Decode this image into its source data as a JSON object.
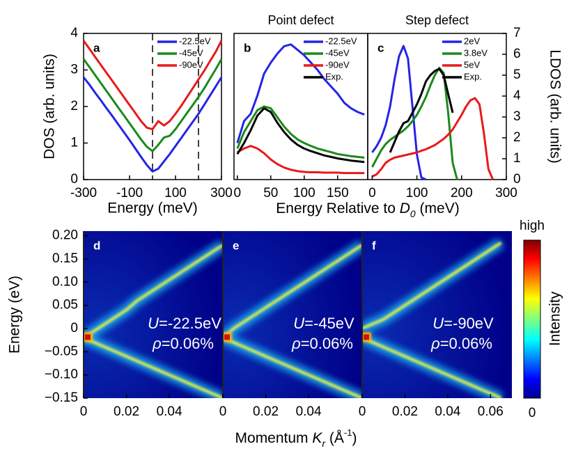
{
  "chart_data": [
    {
      "type": "line",
      "panel_label": "a",
      "xlabel": "Energy (meV)",
      "ylabel": "DOS (arb. units)",
      "xlim": [
        -300,
        300
      ],
      "xticks": [
        -300,
        -100,
        100,
        300
      ],
      "ylim": [
        0,
        4
      ],
      "yticks": [
        0,
        1,
        2,
        3,
        4
      ],
      "vlines": [
        0,
        200
      ],
      "legend": "upper right",
      "x": [
        -300,
        -275,
        -250,
        -225,
        -200,
        -175,
        -150,
        -125,
        -100,
        -75,
        -50,
        -25,
        0,
        25,
        50,
        75,
        100,
        125,
        150,
        175,
        200,
        225,
        250,
        275,
        300
      ],
      "series": [
        {
          "name": "-22.5eV",
          "color": "#2424e6",
          "values": [
            2.8,
            2.6,
            2.38,
            2.17,
            1.95,
            1.74,
            1.52,
            1.3,
            1.08,
            0.85,
            0.62,
            0.4,
            0.22,
            0.3,
            0.5,
            0.7,
            0.92,
            1.14,
            1.36,
            1.58,
            1.8,
            2.05,
            2.3,
            2.55,
            2.8
          ]
        },
        {
          "name": "-45eV",
          "color": "#1a8a1a",
          "values": [
            3.3,
            3.08,
            2.86,
            2.64,
            2.42,
            2.2,
            1.98,
            1.76,
            1.54,
            1.32,
            1.1,
            0.9,
            0.78,
            0.95,
            1.15,
            1.2,
            1.38,
            1.6,
            1.82,
            2.04,
            2.26,
            2.5,
            2.76,
            3.02,
            3.3
          ]
        },
        {
          "name": "-90eV",
          "color": "#e8191b",
          "values": [
            3.8,
            3.58,
            3.36,
            3.14,
            2.92,
            2.7,
            2.48,
            2.26,
            2.04,
            1.82,
            1.6,
            1.42,
            1.38,
            1.6,
            1.48,
            1.6,
            1.8,
            2.02,
            2.26,
            2.5,
            2.74,
            2.98,
            3.24,
            3.5,
            3.8
          ]
        }
      ]
    },
    {
      "type": "line",
      "panel_label": "b",
      "title": "Point defect",
      "xlabel": {
        "text": "Energy Relative to ",
        "symbol": "D",
        "sub": "0",
        "unit": " (meV)"
      },
      "xlim": [
        -5,
        195
      ],
      "xticks": [
        0,
        50,
        100,
        150
      ],
      "ylim": [
        0,
        4
      ],
      "legend": "upper right",
      "x": [
        0,
        10,
        20,
        30,
        40,
        50,
        60,
        70,
        80,
        90,
        100,
        110,
        120,
        130,
        140,
        150,
        160,
        170,
        180,
        190
      ],
      "series": [
        {
          "name": "-22.5eV",
          "color": "#2424e6",
          "values": [
            1.0,
            1.6,
            1.8,
            2.3,
            2.9,
            3.2,
            3.45,
            3.65,
            3.7,
            3.55,
            3.4,
            3.2,
            3.0,
            2.75,
            2.55,
            2.35,
            2.1,
            1.95,
            1.85,
            1.78
          ]
        },
        {
          "name": "-45eV",
          "color": "#1a8a1a",
          "values": [
            0.85,
            1.3,
            1.6,
            1.9,
            2.0,
            1.95,
            1.7,
            1.45,
            1.25,
            1.1,
            1.0,
            0.92,
            0.85,
            0.8,
            0.75,
            0.7,
            0.67,
            0.64,
            0.62,
            0.6
          ]
        },
        {
          "name": "-90eV",
          "color": "#e8191b",
          "values": [
            0.75,
            0.85,
            0.92,
            0.85,
            0.72,
            0.55,
            0.42,
            0.33,
            0.27,
            0.23,
            0.21,
            0.2,
            0.2,
            0.19,
            0.19,
            0.19,
            0.18,
            0.18,
            0.18,
            0.18
          ]
        },
        {
          "name": "Exp.",
          "color": "#000000",
          "values": [
            0.7,
            1.0,
            1.35,
            1.75,
            1.95,
            1.85,
            1.55,
            1.3,
            1.1,
            0.95,
            0.85,
            0.78,
            0.72,
            0.66,
            0.62,
            0.58,
            0.55,
            0.52,
            0.5,
            0.48
          ]
        }
      ]
    },
    {
      "type": "line",
      "panel_label": "c",
      "title": "Step defect",
      "y2label": "LDOS (arb. units)",
      "xlim": [
        -10,
        300
      ],
      "xticks": [
        0,
        100,
        200,
        300
      ],
      "y2lim": [
        0,
        7
      ],
      "y2ticks": [
        0,
        1,
        2,
        3,
        4,
        5,
        6,
        7
      ],
      "legend": "upper right",
      "x": [
        0,
        10,
        20,
        30,
        40,
        50,
        60,
        70,
        80,
        90,
        100,
        110,
        120,
        130,
        140,
        150,
        160,
        170,
        180,
        190,
        200,
        210,
        220,
        230,
        240,
        250,
        260,
        270,
        280
      ],
      "series": [
        {
          "name": "2eV",
          "color": "#2424e6",
          "axis": "y2",
          "values": [
            1.3,
            1.6,
            2.0,
            2.6,
            3.5,
            4.8,
            5.9,
            6.4,
            5.8,
            3.5,
            1.2,
            0.1,
            0,
            null,
            null,
            null,
            null,
            null,
            null,
            null,
            null,
            null,
            null,
            null,
            null,
            null,
            null,
            null,
            null
          ]
        },
        {
          "name": "3.8eV",
          "color": "#1a8a1a",
          "axis": "y2",
          "values": [
            0.6,
            1.0,
            1.4,
            1.7,
            1.9,
            2.05,
            2.2,
            2.35,
            2.55,
            2.8,
            3.1,
            3.5,
            3.95,
            4.5,
            5.0,
            5.35,
            5.1,
            3.2,
            0.8,
            0,
            null,
            null,
            null,
            null,
            null,
            null,
            null,
            null,
            null
          ]
        },
        {
          "name": "5eV",
          "color": "#e8191b",
          "axis": "y2",
          "values": [
            0.15,
            0.25,
            0.5,
            0.8,
            0.95,
            1.05,
            1.1,
            1.15,
            1.2,
            1.25,
            1.3,
            1.38,
            1.45,
            1.55,
            1.65,
            1.8,
            1.95,
            2.15,
            2.4,
            2.75,
            3.1,
            3.5,
            3.8,
            3.9,
            3.6,
            2.2,
            0.5,
            0,
            null
          ]
        },
        {
          "name": "Exp.",
          "color": "#000000",
          "axis": "y2",
          "values": [
            null,
            null,
            null,
            null,
            1.3,
            1.8,
            2.3,
            2.7,
            2.8,
            3.2,
            3.6,
            4.1,
            4.7,
            5.0,
            5.2,
            5.3,
            5.0,
            4.1,
            3.2,
            null,
            null,
            null,
            null,
            null,
            null,
            null,
            null,
            null,
            null
          ]
        }
      ]
    },
    {
      "type": "heatmap",
      "panel_label": "d",
      "ylabel": "Energy (eV)",
      "u_symbol": "U",
      "u_text": "=-22.5eV",
      "rho_symbol": "ρ",
      "rho_text": "=0.06%",
      "xlim": [
        0,
        0.065
      ],
      "xticks": [
        0,
        0.02,
        0.04
      ],
      "ylim": [
        -0.15,
        0.21
      ],
      "yticks": [
        {
          "value": 0.2,
          "label": "0.20"
        },
        0.15,
        {
          "value": 0.1,
          "label": "0.10"
        },
        0.05,
        0,
        {
          "value": -0.05,
          "label": "−0.05"
        },
        {
          "value": -0.1,
          "label": "−0.10"
        },
        {
          "value": -0.15,
          "label": "−0.15"
        }
      ],
      "x": [
        0,
        0.005,
        0.01,
        0.015,
        0.02,
        0.025,
        0.03,
        0.035,
        0.04,
        0.045,
        0.05,
        0.055,
        0.06,
        0.065
      ],
      "series": [
        {
          "values": [
            -0.02,
            -0.005,
            0.01,
            0.025,
            0.04,
            0.06,
            0.075,
            0.09,
            0.105,
            0.12,
            0.135,
            0.15,
            0.165,
            0.18
          ]
        },
        {
          "values": [
            -0.02,
            -0.03,
            -0.04,
            -0.05,
            -0.06,
            -0.07,
            -0.08,
            -0.09,
            -0.1,
            -0.11,
            -0.12,
            -0.13,
            -0.14,
            -0.15
          ]
        }
      ]
    },
    {
      "type": "heatmap",
      "panel_label": "e",
      "xlabel": {
        "text": "Momentum ",
        "symbol": "K",
        "sub": "r",
        "unit": " (Å",
        "sup": "-1",
        "close": ")"
      },
      "u_symbol": "U",
      "u_text": "=-45eV",
      "rho_symbol": "ρ",
      "rho_text": "=0.06%",
      "xlim": [
        0,
        0.065
      ],
      "xticks": [
        0,
        0.02,
        0.04
      ],
      "ylim": [
        -0.15,
        0.21
      ],
      "x": [
        0,
        0.005,
        0.01,
        0.015,
        0.02,
        0.025,
        0.03,
        0.035,
        0.04,
        0.045,
        0.05,
        0.055,
        0.06,
        0.065
      ],
      "series": [
        {
          "values": [
            -0.02,
            0.0,
            0.015,
            0.03,
            0.045,
            0.06,
            0.075,
            0.09,
            0.105,
            0.12,
            0.135,
            0.15,
            0.165,
            0.18
          ]
        },
        {
          "values": [
            -0.02,
            -0.03,
            -0.04,
            -0.05,
            -0.06,
            -0.07,
            -0.08,
            -0.09,
            -0.1,
            -0.11,
            -0.12,
            -0.13,
            -0.14,
            -0.15
          ]
        }
      ]
    },
    {
      "type": "heatmap",
      "panel_label": "f",
      "u_symbol": "U",
      "u_text": "=-90eV",
      "rho_symbol": "ρ",
      "rho_text": "=0.06%",
      "xlim": [
        0,
        0.07
      ],
      "xticks": [
        0,
        0.02,
        0.04,
        0.06
      ],
      "ylim": [
        -0.15,
        0.21
      ],
      "x": [
        0,
        0.005,
        0.01,
        0.015,
        0.02,
        0.025,
        0.03,
        0.035,
        0.04,
        0.045,
        0.05,
        0.055,
        0.06,
        0.065
      ],
      "series": [
        {
          "values": [
            0.0,
            0.01,
            0.02,
            0.035,
            0.05,
            0.065,
            0.08,
            0.095,
            0.11,
            0.125,
            0.14,
            0.155,
            0.17,
            0.185
          ]
        },
        {
          "values": [
            -0.02,
            -0.03,
            -0.04,
            -0.05,
            -0.06,
            -0.07,
            -0.08,
            -0.09,
            -0.1,
            -0.11,
            -0.12,
            -0.13,
            -0.14,
            -0.15
          ]
        }
      ],
      "colorbar": {
        "label": "Intensity",
        "lim": [
          0,
          1
        ],
        "ticks": [
          0,
          {
            "value": 1,
            "label": "high"
          }
        ]
      }
    }
  ]
}
